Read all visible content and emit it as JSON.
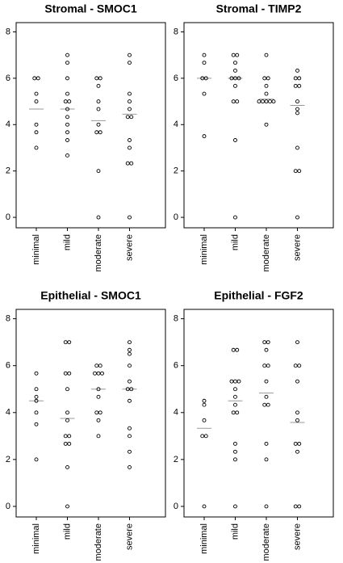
{
  "chart_data": [
    {
      "type": "strip",
      "title": "Stromal - SMOC1",
      "categories": [
        "minimal",
        "mild",
        "moderate",
        "severe"
      ],
      "values": [
        [
          6,
          6,
          5.33,
          5,
          4,
          3.67,
          3
        ],
        [
          7,
          6.67,
          6,
          5.33,
          5,
          5,
          4.67,
          4.33,
          4,
          3.67,
          3.33,
          2.67
        ],
        [
          6,
          6,
          5.67,
          5,
          4.67,
          4,
          3.67,
          3.67,
          2,
          0
        ],
        [
          7,
          6.67,
          5.33,
          5,
          4.67,
          4.33,
          4.33,
          3.33,
          3,
          2.33,
          2.33,
          0
        ]
      ],
      "means": [
        4.67,
        4.67,
        4.17,
        4.45
      ],
      "ylim": [
        -0.45,
        8.4
      ],
      "yticks": [
        0,
        2,
        4,
        6,
        8
      ]
    },
    {
      "type": "strip",
      "title": "Stromal - TIMP2",
      "categories": [
        "minimal",
        "mild",
        "moderate",
        "severe"
      ],
      "values": [
        [
          7,
          6.67,
          6,
          6,
          5.33,
          3.5
        ],
        [
          7,
          7,
          6.67,
          6.33,
          6,
          6,
          6,
          5.67,
          5,
          5,
          3.33,
          0
        ],
        [
          7,
          6,
          6,
          5.67,
          5.33,
          5,
          5,
          5,
          5,
          5,
          4
        ],
        [
          6.33,
          6,
          6,
          5.67,
          5.67,
          5,
          4.67,
          4.5,
          3,
          2,
          2,
          0
        ]
      ],
      "means": [
        6,
        6,
        5.1,
        4.83
      ],
      "ylim": [
        -0.45,
        8.4
      ],
      "yticks": [
        0,
        2,
        4,
        6,
        8
      ]
    },
    {
      "type": "strip",
      "title": "Epithelial - SMOC1",
      "categories": [
        "minimal",
        "mild",
        "moderate",
        "severe"
      ],
      "values": [
        [
          5.67,
          5,
          4.67,
          4.5,
          4,
          3.5,
          2
        ],
        [
          7,
          7,
          5.67,
          5.67,
          5,
          4,
          3.67,
          3,
          3,
          2.67,
          2.67,
          1.67,
          0
        ],
        [
          6,
          6,
          5.67,
          5.67,
          5.67,
          5,
          4.67,
          4,
          4,
          3.67,
          3
        ],
        [
          7,
          6.67,
          6.5,
          6,
          5.33,
          5,
          5,
          4.5,
          3.33,
          3,
          2.33,
          1.67
        ]
      ],
      "means": [
        4.5,
        3.75,
        5,
        5
      ],
      "ylim": [
        -0.45,
        8.4
      ],
      "yticks": [
        0,
        2,
        4,
        6,
        8
      ]
    },
    {
      "type": "strip",
      "title": "Epithelial - FGF2",
      "categories": [
        "minimal",
        "mild",
        "moderate",
        "severe"
      ],
      "values": [
        [
          4.5,
          4.33,
          3.67,
          3,
          3,
          0
        ],
        [
          6.67,
          6.67,
          5.33,
          5.33,
          5.33,
          5,
          4.67,
          4.33,
          4,
          4,
          2.67,
          2.33,
          2,
          0
        ],
        [
          7,
          7,
          6.67,
          6,
          6,
          5.33,
          4.67,
          4.33,
          4.33,
          2.67,
          2,
          0
        ],
        [
          7,
          6,
          6,
          5.33,
          4,
          3.67,
          2.67,
          2.67,
          2.33,
          0,
          0
        ]
      ],
      "means": [
        3.33,
        4.5,
        4.83,
        3.58
      ],
      "ylim": [
        -0.45,
        8.4
      ],
      "yticks": [
        0,
        2,
        4,
        6,
        8
      ]
    }
  ]
}
